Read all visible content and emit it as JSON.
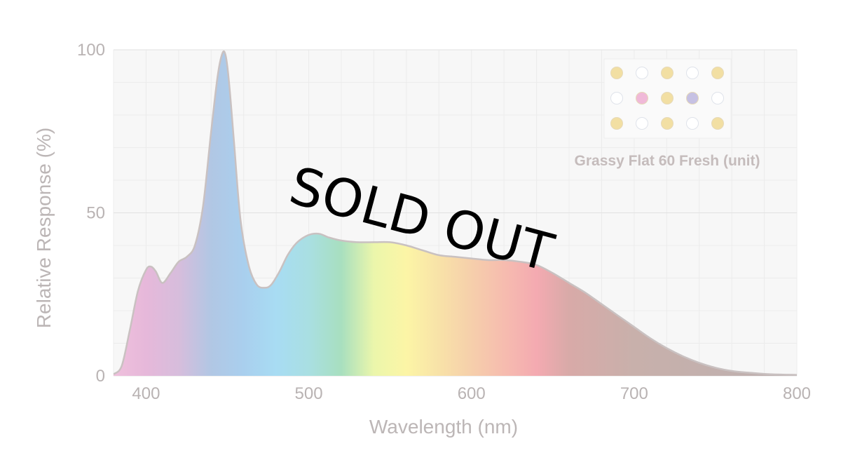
{
  "chart_data": {
    "type": "area",
    "xlabel": "Wavelength (nm)",
    "ylabel": "Relative Response (%)",
    "xlim": [
      380,
      800
    ],
    "ylim": [
      0,
      100
    ],
    "x_ticks": [
      400,
      500,
      600,
      700,
      800
    ],
    "y_ticks": [
      0,
      50,
      100
    ],
    "grid": true,
    "x": [
      380,
      385,
      390,
      395,
      400,
      403,
      406,
      410,
      415,
      420,
      425,
      430,
      435,
      440,
      444,
      447,
      449,
      451,
      454,
      458,
      463,
      468,
      473,
      477,
      482,
      487,
      492,
      497,
      502,
      507,
      512,
      520,
      530,
      540,
      550,
      560,
      570,
      580,
      590,
      600,
      610,
      620,
      630,
      640,
      650,
      660,
      670,
      680,
      690,
      700,
      710,
      720,
      730,
      740,
      750,
      760,
      770,
      780,
      790,
      800
    ],
    "y": [
      0.5,
      3,
      14,
      26,
      32.5,
      33.5,
      32,
      28.5,
      31.5,
      35,
      36.5,
      40,
      52,
      75,
      92,
      99,
      98,
      90,
      72,
      48,
      34,
      28,
      27,
      28,
      32,
      37,
      40.5,
      42.5,
      43.5,
      43.5,
      42.5,
      41.5,
      41,
      41,
      41,
      40,
      38.5,
      37,
      36.5,
      36,
      35.5,
      35.5,
      35,
      34,
      31.5,
      28.5,
      25.5,
      22,
      18.5,
      15,
      11.5,
      8.5,
      6,
      4,
      2.5,
      1.5,
      1,
      0.6,
      0.4,
      0.3
    ],
    "series": [
      {
        "legend": "Grassy Flat 60 Fresh (unit)",
        "led_grid": [
          [
            "#f2dfa3",
            "#ffffff",
            "#f2dfa3",
            "#ffffff",
            "#f2dfa3"
          ],
          [
            "#ffffff",
            "#f0b9d8",
            "#f2dfa3",
            "#c6c1e3",
            "#ffffff"
          ],
          [
            "#f2dfa3",
            "#ffffff",
            "#f2dfa3",
            "#ffffff",
            "#f2dfa3"
          ]
        ]
      }
    ],
    "legend_position": "top-right",
    "spectrum_colors": {
      "380": "#efc0dc",
      "400": "#e6b8da",
      "420": "#d7bddc",
      "440": "#b1c7e4",
      "460": "#a9cfee",
      "480": "#a8dcf3",
      "500": "#a9dfe2",
      "520": "#a8dfbf",
      "540": "#ebf6ab",
      "560": "#fcf5a6",
      "580": "#f8e2a8",
      "600": "#f6cfab",
      "620": "#f6bcaf",
      "640": "#f4aab1",
      "660": "#d8aaa8",
      "700": "#c8b0ab",
      "800": "#bcb0b0"
    },
    "curve_stroke": "#c9c1c1"
  },
  "watermark": {
    "text": "SOLD OUT"
  }
}
